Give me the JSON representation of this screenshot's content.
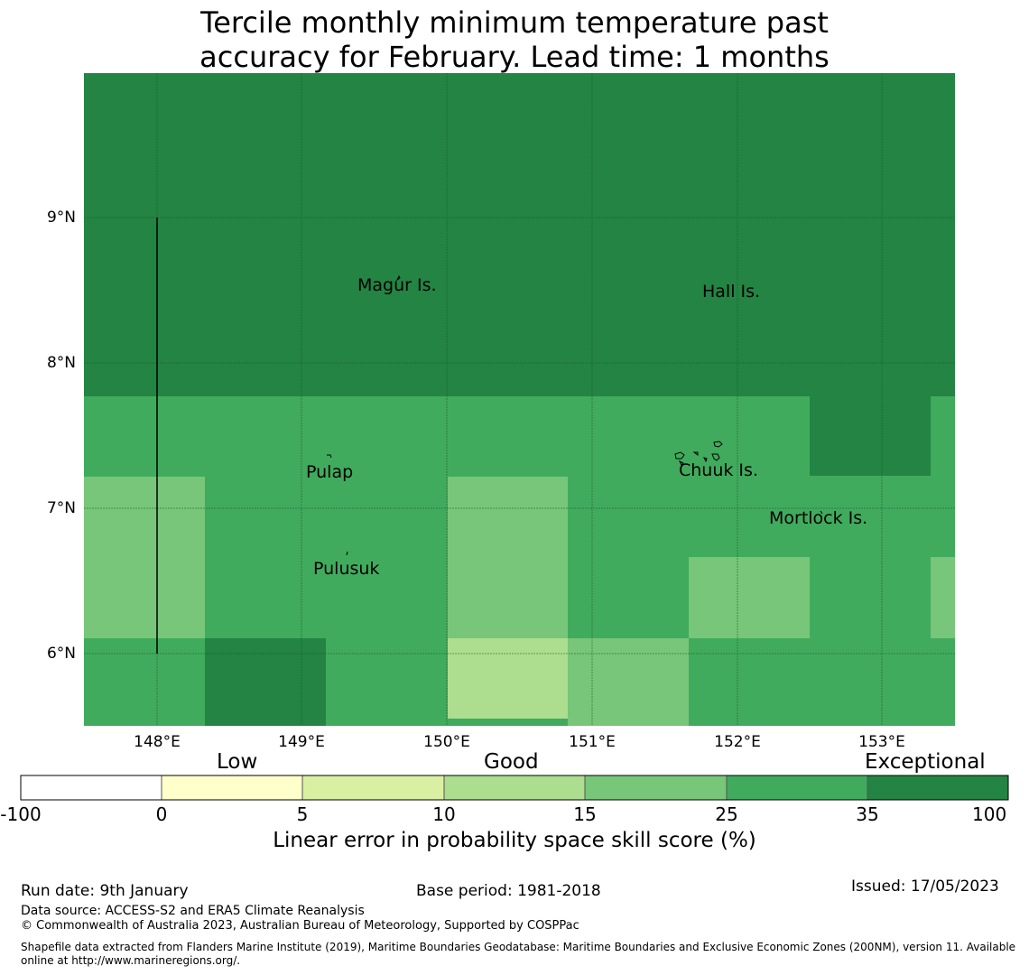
{
  "title_line1": "Tercile monthly minimum temperature past",
  "title_line2": "accuracy for February. Lead time: 1 months",
  "map": {
    "lon_range": [
      147.5,
      153.5
    ],
    "lat_range": [
      5.5,
      10.0
    ],
    "lat_labels": [
      "9°N",
      "8°N",
      "7°N",
      "6°N"
    ],
    "lon_labels": [
      "148°E",
      "149°E",
      "150°E",
      "151°E",
      "152°E",
      "153°E"
    ],
    "places": [
      {
        "name": "Magur Is.",
        "lon": 149.6,
        "lat": 8.5
      },
      {
        "name": "Hall Is.",
        "lon": 151.8,
        "lat": 8.45
      },
      {
        "name": "Pulap",
        "lon": 149.1,
        "lat": 7.22
      },
      {
        "name": "Chuuk Is.",
        "lon": 151.7,
        "lat": 7.23
      },
      {
        "name": "Mortlock Is.",
        "lon": 152.6,
        "lat": 6.9
      },
      {
        "name": "Pulusuk",
        "lon": 149.3,
        "lat": 6.56
      }
    ]
  },
  "legend": {
    "categories": [
      "Low",
      "Good",
      "Exceptional"
    ],
    "ticks": [
      "-100",
      "0",
      "5",
      "10",
      "15",
      "25",
      "35",
      "100"
    ],
    "colors": [
      "#ffffff",
      "#ffffcc",
      "#d9f0a3",
      "#addd8e",
      "#78c679",
      "#41ab5d",
      "#238443"
    ],
    "axis_title": "Linear error in probability space skill score (%)"
  },
  "footer": {
    "run_date": "Run date: 9th January",
    "base_period": "Base period: 1981-2018",
    "issued": "Issued: 17/05/2023",
    "data_source": "Data source: ACCESS-S2 and ERA5 Climate Reanalysis",
    "copyright": "© Commonwealth of Australia 2023, Australian Bureau of Meteorology, Supported by COSPPac",
    "shapefile_line1": "Shapefile data extracted from Flanders Marine Institute (2019), Maritime Boundaries Geodatabase: Maritime Boundaries and Exclusive Economic Zones (200NM), version 11. Available",
    "shapefile_line2": "online at http://www.marineregions.org/."
  }
}
